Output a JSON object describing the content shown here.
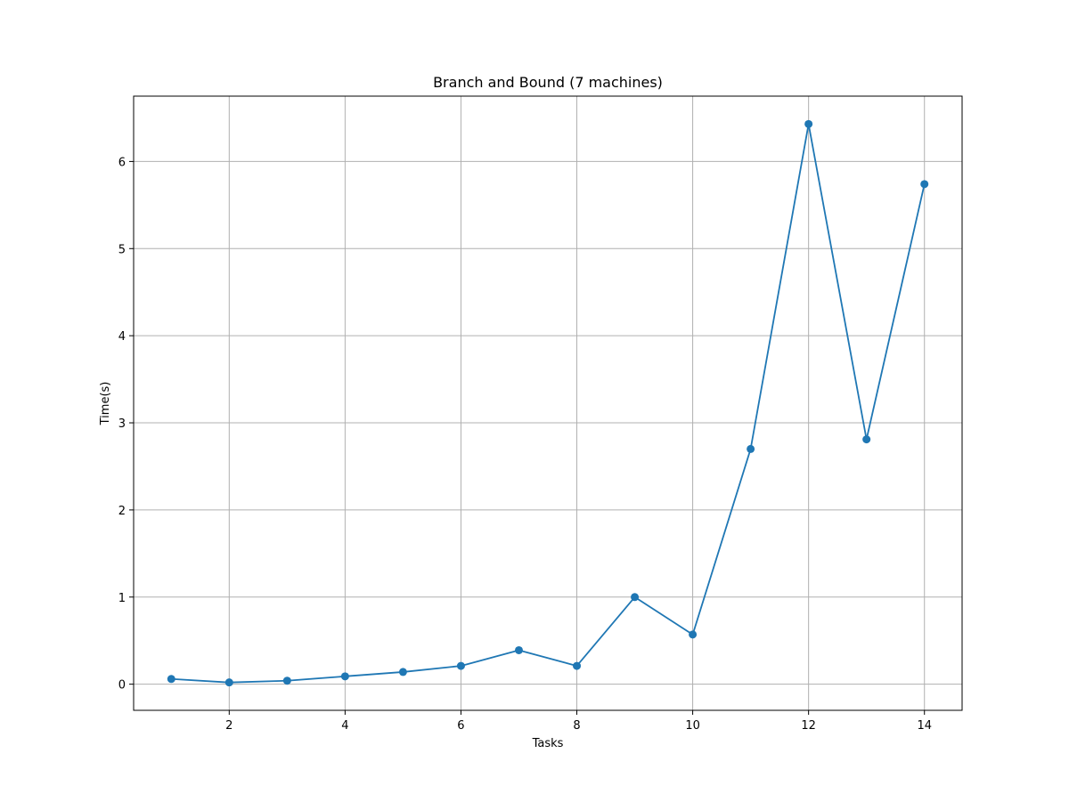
{
  "chart_data": {
    "type": "line",
    "title": "Branch and Bound (7 machines)",
    "xlabel": "Tasks",
    "ylabel": "Time(s)",
    "x": [
      1,
      2,
      3,
      4,
      5,
      6,
      7,
      8,
      9,
      10,
      11,
      12,
      13,
      14
    ],
    "series": [
      {
        "values": [
          0.06,
          0.02,
          0.04,
          0.09,
          0.14,
          0.21,
          0.39,
          0.21,
          1.0,
          0.57,
          2.7,
          6.43,
          2.81,
          5.74
        ],
        "color": "#1f77b4",
        "marker": "circle"
      }
    ],
    "xlim": [
      0.35,
      14.65
    ],
    "ylim": [
      -0.3,
      6.75
    ],
    "xticks": [
      "2",
      "4",
      "6",
      "8",
      "10",
      "12",
      "14"
    ],
    "xtick_values": [
      2,
      4,
      6,
      8,
      10,
      12,
      14
    ],
    "yticks": [
      "0",
      "1",
      "2",
      "3",
      "4",
      "5",
      "6"
    ],
    "ytick_values": [
      0,
      1,
      2,
      3,
      4,
      5,
      6
    ],
    "grid": true,
    "grid_color": "#b0b0b0",
    "legend": "none"
  }
}
